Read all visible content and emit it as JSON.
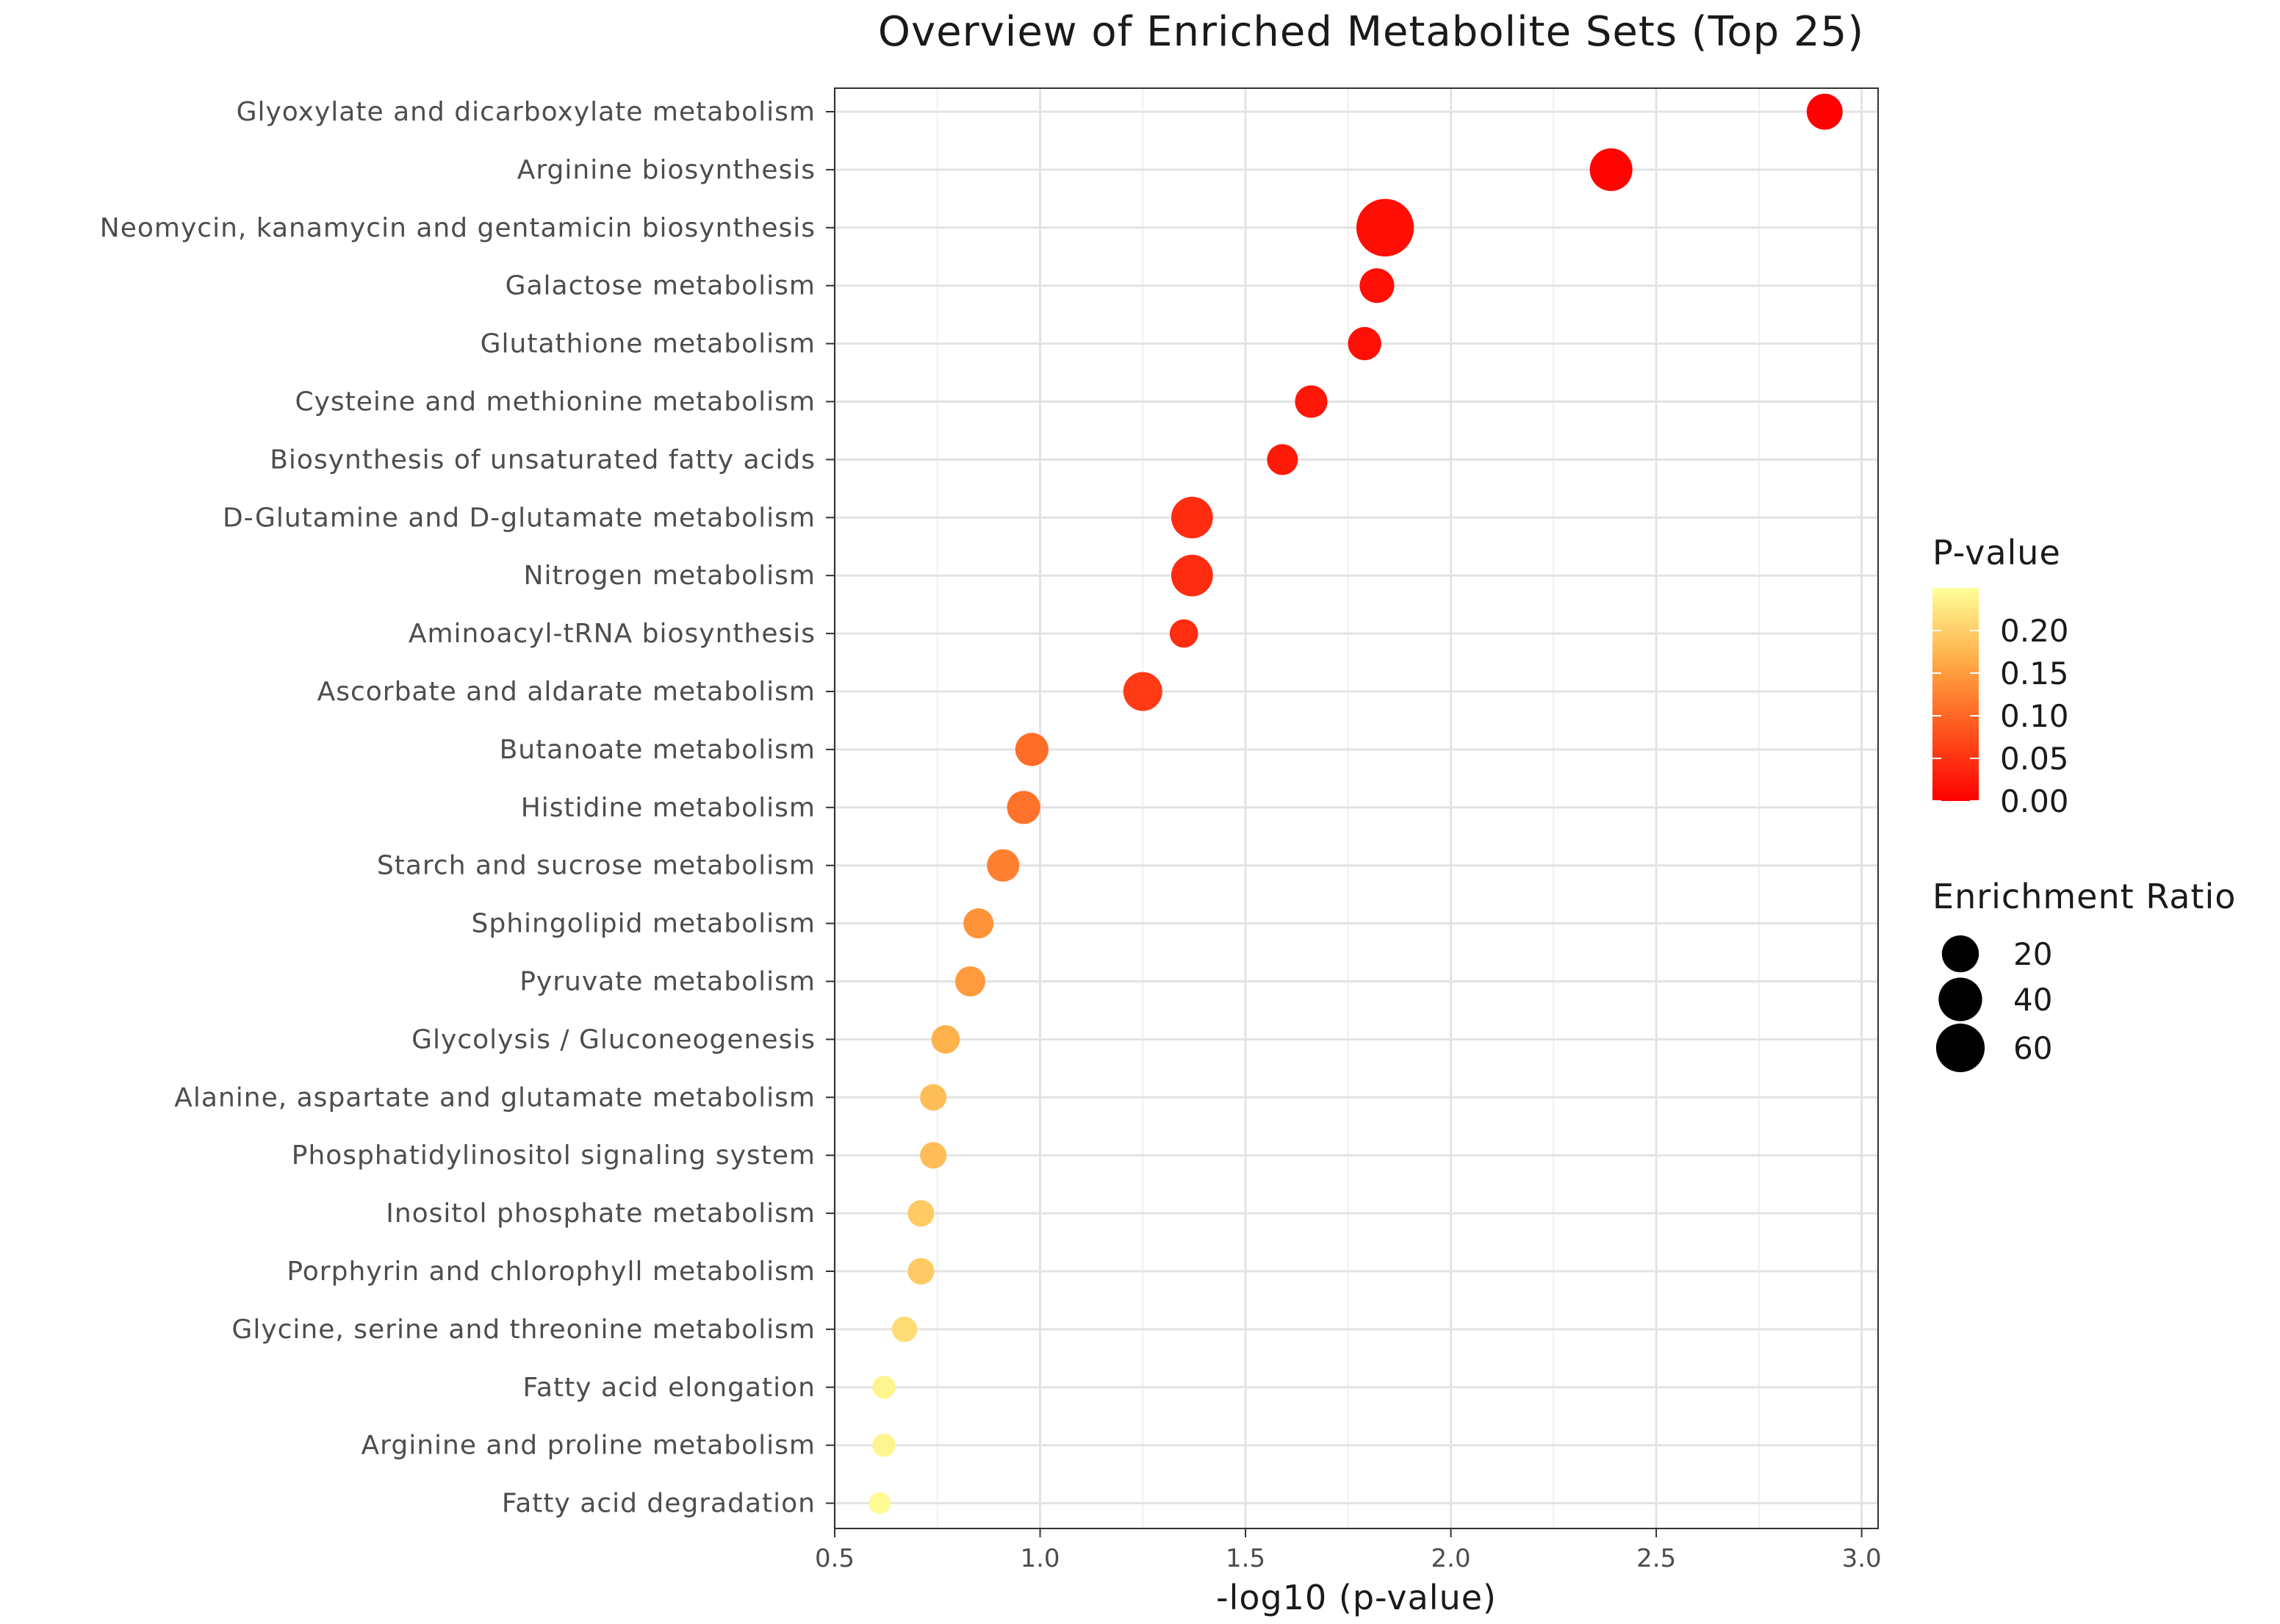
{
  "chart_data": {
    "type": "scatter",
    "title": "Overview of Enriched Metabolite Sets (Top 25)",
    "xlabel": "-log10 (p-value)",
    "ylabel": "",
    "xlim": [
      0.5,
      3.04
    ],
    "xticks": [
      0.5,
      1.0,
      1.5,
      2.0,
      2.5,
      3.0
    ],
    "xtick_labels": [
      "0.5",
      "1.0",
      "1.5",
      "2.0",
      "2.5",
      "3.0"
    ],
    "grid": true,
    "categories": [
      "Glyoxylate and dicarboxylate metabolism",
      "Arginine biosynthesis",
      "Neomycin, kanamycin and gentamicin biosynthesis",
      "Galactose metabolism",
      "Glutathione metabolism",
      "Cysteine and methionine metabolism",
      "Biosynthesis of unsaturated fatty acids",
      "D-Glutamine and D-glutamate metabolism",
      "Nitrogen metabolism",
      "Aminoacyl-tRNA biosynthesis",
      "Ascorbate and aldarate metabolism",
      "Butanoate metabolism",
      "Histidine metabolism",
      "Starch and sucrose metabolism",
      "Sphingolipid metabolism",
      "Pyruvate metabolism",
      "Glycolysis / Gluconeogenesis",
      "Alanine, aspartate and glutamate metabolism",
      "Phosphatidylinositol signaling system",
      "Inositol phosphate metabolism",
      "Porphyrin and chlorophyll metabolism",
      "Glycine, serine and threonine metabolism",
      "Fatty acid elongation",
      "Arginine and proline metabolism",
      "Fatty acid degradation"
    ],
    "x": [
      2.91,
      2.39,
      1.84,
      1.82,
      1.79,
      1.66,
      1.59,
      1.37,
      1.37,
      1.35,
      1.25,
      0.98,
      0.96,
      0.91,
      0.85,
      0.83,
      0.77,
      0.74,
      0.74,
      0.71,
      0.71,
      0.67,
      0.62,
      0.62,
      0.61
    ],
    "p_value": [
      0.0012,
      0.004,
      0.014,
      0.015,
      0.016,
      0.022,
      0.026,
      0.043,
      0.043,
      0.045,
      0.056,
      0.105,
      0.11,
      0.123,
      0.141,
      0.148,
      0.17,
      0.182,
      0.182,
      0.195,
      0.195,
      0.214,
      0.24,
      0.24,
      0.245
    ],
    "enrichment_ratio": [
      20,
      32,
      68,
      18,
      16,
      15,
      13,
      30,
      30,
      10,
      25,
      16,
      16,
      15,
      12,
      12,
      10,
      8,
      8,
      8,
      8,
      7,
      5,
      5,
      4
    ],
    "legend_color": {
      "title": "P-value",
      "ticks": [
        "0.20",
        "0.15",
        "0.10",
        "0.05",
        "0.00"
      ],
      "tick_values": [
        0.2,
        0.15,
        0.1,
        0.05,
        0.0
      ],
      "range": [
        0.0,
        0.25
      ],
      "low_color": "#ff0000",
      "high_color": "#ffff99",
      "position": "right"
    },
    "legend_size": {
      "title": "Enrichment Ratio",
      "labels": [
        "20",
        "40",
        "60"
      ],
      "values": [
        20,
        40,
        60
      ],
      "position": "right"
    }
  }
}
